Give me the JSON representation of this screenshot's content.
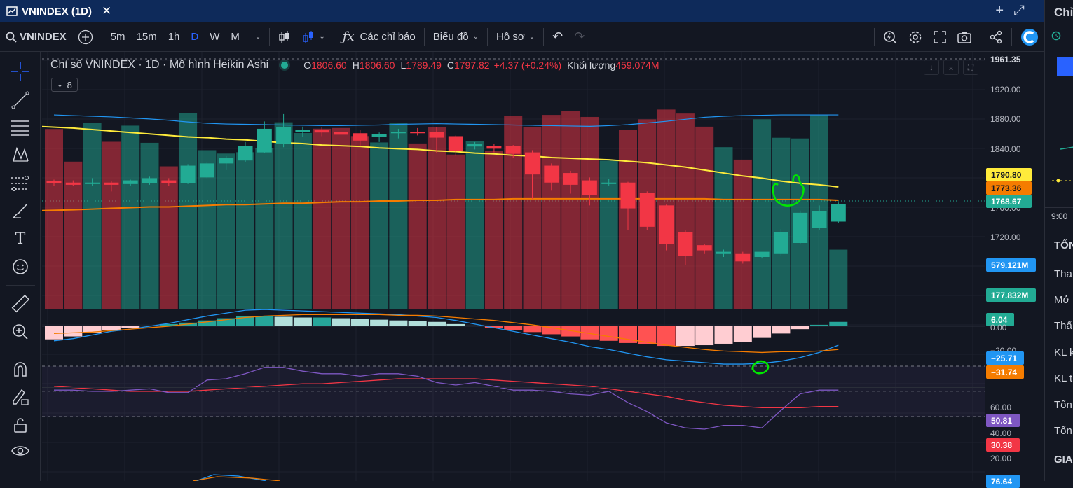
{
  "window": {
    "title": "VNINDEX (1D)",
    "close": "✕"
  },
  "toolbar": {
    "symbol": "VNINDEX",
    "intervals": [
      "5m",
      "15m",
      "1h",
      "D",
      "W",
      "M"
    ],
    "active_interval": "D",
    "indicators_label": "Các chỉ báo",
    "chart_label": "Biểu đồ",
    "profile_label": "Hồ sơ"
  },
  "legend": {
    "title": "Chỉ số VNINDEX · 1D · Mô hình Heikin Ashi",
    "open_label": "O",
    "open": "1806.60",
    "high_label": "H",
    "high": "1806.60",
    "low_label": "L",
    "low": "1789.49",
    "close_label": "C",
    "close": "1797.82",
    "change": "+4.37 (+0.24%)",
    "volume_label": "Khối lượng",
    "volume": "459.074M",
    "collapsed_count": "8"
  },
  "price_axis": {
    "ticks": [
      "1961.35",
      "1920.00",
      "1880.00",
      "1840.00",
      "1760.00",
      "1720.00"
    ],
    "badges": [
      {
        "label": "1790.80",
        "bg": "#ffeb3b",
        "fg": "#131722"
      },
      {
        "label": "1773.36",
        "bg": "#f57c00",
        "fg": "#131722"
      },
      {
        "label": "1768.67",
        "bg": "#22ab94",
        "fg": "#ffffff"
      }
    ]
  },
  "volume_axis": {
    "badges": [
      {
        "label": "579.121M",
        "bg": "#2196f3",
        "fg": "#ffffff"
      },
      {
        "label": "177.832M",
        "bg": "#22ab94",
        "fg": "#ffffff"
      }
    ]
  },
  "macd_axis": {
    "ticks": [
      "0.00",
      "−20.00"
    ],
    "badges": [
      {
        "label": "6.04",
        "bg": "#22ab94",
        "fg": "#ffffff"
      },
      {
        "label": "−25.71",
        "bg": "#2196f3",
        "fg": "#ffffff"
      },
      {
        "label": "−31.74",
        "bg": "#f57c00",
        "fg": "#ffffff"
      }
    ]
  },
  "rsi_axis": {
    "ticks": [
      "60.00",
      "40.00",
      "20.00"
    ],
    "badges": [
      {
        "label": "50.81",
        "bg": "#7e57c2",
        "fg": "#ffffff"
      },
      {
        "label": "30.38",
        "bg": "#f23645",
        "fg": "#ffffff"
      }
    ]
  },
  "bottom_axis": {
    "badge": {
      "label": "76.64",
      "bg": "#2196f3",
      "fg": "#ffffff"
    }
  },
  "right_panel": {
    "title": "Chỉ",
    "time": "9:00",
    "rows": [
      "TỔN",
      "Tha",
      "Mở",
      "Thấ",
      "KL k",
      "KL t",
      "Tổn",
      "Tổn",
      "GIA"
    ]
  },
  "colors": {
    "up": "#22ab94",
    "down": "#f23645",
    "ma_slow": "#ffeb3b",
    "ma_fast": "#f57c00",
    "macd": "#2196f3",
    "signal": "#f57c00",
    "rsi": "#7e57c2",
    "rsi_ma": "#f23645",
    "annotation": "#00e600"
  },
  "chart_data": {
    "type": "candlestick",
    "ylim": [
      1690,
      1965
    ],
    "candles": [
      {
        "o": 1799,
        "h": 1801,
        "l": 1792,
        "c": 1796
      },
      {
        "o": 1797,
        "h": 1800,
        "l": 1792,
        "c": 1794
      },
      {
        "o": 1795,
        "h": 1803,
        "l": 1793,
        "c": 1797
      },
      {
        "o": 1797,
        "h": 1799,
        "l": 1785,
        "c": 1794
      },
      {
        "o": 1795,
        "h": 1801,
        "l": 1793,
        "c": 1800
      },
      {
        "o": 1796,
        "h": 1805,
        "l": 1794,
        "c": 1803
      },
      {
        "o": 1800,
        "h": 1803,
        "l": 1792,
        "c": 1796
      },
      {
        "o": 1796,
        "h": 1822,
        "l": 1795,
        "c": 1820
      },
      {
        "o": 1804,
        "h": 1825,
        "l": 1803,
        "c": 1823
      },
      {
        "o": 1823,
        "h": 1833,
        "l": 1814,
        "c": 1830
      },
      {
        "o": 1827,
        "h": 1852,
        "l": 1825,
        "c": 1847
      },
      {
        "o": 1838,
        "h": 1880,
        "l": 1837,
        "c": 1870
      },
      {
        "o": 1850,
        "h": 1890,
        "l": 1845,
        "c": 1872
      },
      {
        "o": 1866,
        "h": 1873,
        "l": 1859,
        "c": 1869
      },
      {
        "o": 1868,
        "h": 1872,
        "l": 1860,
        "c": 1865
      },
      {
        "o": 1866,
        "h": 1871,
        "l": 1858,
        "c": 1862
      },
      {
        "o": 1864,
        "h": 1869,
        "l": 1846,
        "c": 1854
      },
      {
        "o": 1859,
        "h": 1865,
        "l": 1852,
        "c": 1863
      },
      {
        "o": 1864,
        "h": 1870,
        "l": 1857,
        "c": 1866
      },
      {
        "o": 1866,
        "h": 1871,
        "l": 1861,
        "c": 1864
      },
      {
        "o": 1866,
        "h": 1872,
        "l": 1837,
        "c": 1858
      },
      {
        "o": 1860,
        "h": 1861,
        "l": 1833,
        "c": 1840
      },
      {
        "o": 1846,
        "h": 1852,
        "l": 1842,
        "c": 1849
      },
      {
        "o": 1847,
        "h": 1850,
        "l": 1838,
        "c": 1843
      },
      {
        "o": 1847,
        "h": 1848,
        "l": 1830,
        "c": 1836
      },
      {
        "o": 1838,
        "h": 1841,
        "l": 1775,
        "c": 1808
      },
      {
        "o": 1820,
        "h": 1823,
        "l": 1786,
        "c": 1797
      },
      {
        "o": 1810,
        "h": 1813,
        "l": 1782,
        "c": 1794
      },
      {
        "o": 1800,
        "h": 1804,
        "l": 1766,
        "c": 1780
      },
      {
        "o": 1795,
        "h": 1802,
        "l": 1793,
        "c": 1797
      },
      {
        "o": 1797,
        "h": 1798,
        "l": 1733,
        "c": 1762
      },
      {
        "o": 1783,
        "h": 1785,
        "l": 1733,
        "c": 1737
      },
      {
        "o": 1766,
        "h": 1767,
        "l": 1705,
        "c": 1714
      },
      {
        "o": 1730,
        "h": 1732,
        "l": 1685,
        "c": 1697
      },
      {
        "o": 1712,
        "h": 1714,
        "l": 1700,
        "c": 1705
      },
      {
        "o": 1700,
        "h": 1706,
        "l": 1696,
        "c": 1703
      },
      {
        "o": 1700,
        "h": 1703,
        "l": 1687,
        "c": 1690
      },
      {
        "o": 1696,
        "h": 1702,
        "l": 1694,
        "c": 1703
      },
      {
        "o": 1700,
        "h": 1734,
        "l": 1698,
        "c": 1730
      },
      {
        "o": 1715,
        "h": 1759,
        "l": 1713,
        "c": 1756
      },
      {
        "o": 1735,
        "h": 1766,
        "l": 1733,
        "c": 1758
      },
      {
        "o": 1744,
        "h": 1770,
        "l": 1742,
        "c": 1768
      }
    ],
    "ma_slow": [
      1873,
      1871,
      1869,
      1867,
      1865,
      1863,
      1861,
      1859,
      1858,
      1856,
      1855,
      1853,
      1851,
      1850,
      1848,
      1847,
      1846,
      1844,
      1843,
      1842,
      1840,
      1839,
      1837,
      1836,
      1834,
      1833,
      1831,
      1830,
      1829,
      1828,
      1826,
      1824,
      1821,
      1818,
      1814,
      1810,
      1806,
      1803,
      1799,
      1796,
      1794,
      1791
    ],
    "ma_fast": [
      1759,
      1760,
      1761,
      1762,
      1763,
      1764,
      1764,
      1765,
      1766,
      1767,
      1767,
      1768,
      1769,
      1769,
      1770,
      1771,
      1771,
      1772,
      1772,
      1773,
      1773,
      1774,
      1774,
      1774,
      1775,
      1775,
      1775,
      1775,
      1775,
      1775,
      1775,
      1775,
      1775,
      1775,
      1775,
      1774,
      1774,
      1774,
      1774,
      1774,
      1774,
      1773
    ],
    "volume": [
      537,
      440,
      556,
      499,
      547,
      496,
      426,
      584,
      474,
      464,
      468,
      481,
      557,
      525,
      538,
      540,
      516,
      497,
      554,
      494,
      542,
      461,
      502,
      473,
      577,
      542,
      579,
      591,
      573,
      443,
      535,
      566,
      595,
      583,
      544,
      483,
      446,
      566,
      511,
      509,
      579,
      178
    ],
    "volume_ma": [
      579,
      577,
      575,
      573,
      570,
      567,
      563,
      558,
      554,
      552,
      551,
      550,
      549,
      548,
      547,
      547,
      548,
      549,
      551,
      552,
      553,
      552,
      551,
      550,
      549,
      548,
      547,
      546,
      545,
      547,
      550,
      555,
      560,
      566,
      572,
      575,
      577,
      578,
      579,
      579,
      579,
      579
    ],
    "macd_hist": [
      -18,
      -14,
      -9,
      -5,
      -2,
      1,
      3,
      5,
      8,
      11,
      14,
      14,
      13,
      12,
      12,
      11,
      10,
      9,
      8,
      7,
      6,
      3,
      1,
      -2,
      -5,
      -8,
      -11,
      -14,
      -18,
      -20,
      -23,
      -25,
      -27,
      -27,
      -26,
      -24,
      -22,
      -16,
      -10,
      -4,
      2,
      6
    ],
    "macd_line": [
      -20,
      -17,
      -12,
      -7,
      -4,
      0,
      4,
      9,
      14,
      18,
      22,
      23,
      22,
      21,
      20,
      19,
      18,
      17,
      16,
      14,
      12,
      8,
      3,
      -2,
      -7,
      -12,
      -17,
      -22,
      -28,
      -32,
      -37,
      -42,
      -46,
      -48,
      -50,
      -52,
      -52,
      -51,
      -48,
      -43,
      -36,
      -26
    ],
    "signal_line": [
      -10,
      -9,
      -8,
      -6,
      -4,
      -2,
      0,
      3,
      6,
      9,
      12,
      14,
      15,
      16,
      16,
      16,
      16,
      16,
      15,
      15,
      14,
      12,
      10,
      8,
      5,
      2,
      -2,
      -6,
      -10,
      -14,
      -18,
      -22,
      -26,
      -29,
      -32,
      -34,
      -35,
      -36,
      -35,
      -35,
      -34,
      -32
    ],
    "rsi": [
      51,
      51,
      50,
      50,
      51,
      52,
      49,
      49,
      59,
      60,
      64,
      69,
      69,
      66,
      64,
      64,
      62,
      64,
      64,
      62,
      57,
      55,
      57,
      54,
      51,
      51,
      50,
      48,
      47,
      50,
      41,
      34,
      25,
      21,
      20,
      23,
      23,
      21,
      35,
      48,
      51,
      51
    ],
    "rsi_ma": [
      54,
      53,
      52,
      51,
      50,
      50,
      50,
      50,
      51,
      52,
      53,
      54,
      55,
      56,
      56,
      57,
      58,
      59,
      60,
      60,
      60,
      60,
      60,
      59,
      58,
      57,
      56,
      55,
      54,
      52,
      50,
      48,
      46,
      43,
      41,
      39,
      38,
      37,
      37,
      37,
      38,
      38
    ]
  }
}
